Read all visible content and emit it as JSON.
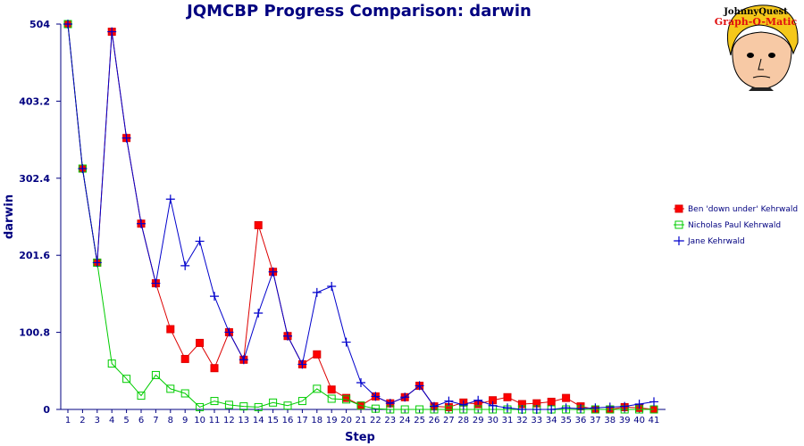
{
  "logo": {
    "line1": "JohnnyQuest",
    "line2": "Graph-O-Matic"
  },
  "chart_data": {
    "type": "line",
    "title": "JQMCBP Progress Comparison: darwin",
    "xlabel": "Step",
    "ylabel": "darwin",
    "ylim": [
      0,
      504
    ],
    "yticks": [
      "0",
      "100.8",
      "201.6",
      "302.4",
      "403.2",
      "504"
    ],
    "yticks_values": [
      0,
      100.8,
      201.6,
      302.4,
      403.2,
      504
    ],
    "categories": [
      "1",
      "2",
      "3",
      "4",
      "5",
      "6",
      "7",
      "8",
      "9",
      "10",
      "11",
      "12",
      "13",
      "14",
      "15",
      "16",
      "17",
      "18",
      "19",
      "20",
      "21",
      "22",
      "23",
      "24",
      "25",
      "26",
      "27",
      "28",
      "29",
      "30",
      "31",
      "32",
      "33",
      "34",
      "35",
      "36",
      "37",
      "38",
      "39",
      "40",
      "41"
    ],
    "grid": false,
    "legend_position": "right",
    "series": [
      {
        "name": "Ben 'down under' Kehrwald",
        "color": "#dd0000",
        "fill": "#ff0000",
        "marker": "filled-square",
        "values": [
          504,
          315,
          192,
          494,
          355,
          243,
          165,
          105,
          66,
          87,
          54,
          101,
          65,
          241,
          180,
          96,
          59,
          72,
          26,
          15,
          5,
          17,
          8,
          16,
          31,
          4,
          3,
          9,
          7,
          12,
          16,
          7,
          8,
          10,
          15,
          4,
          0,
          0,
          3,
          2,
          0
        ]
      },
      {
        "name": "Nicholas Paul Kehrwald",
        "color": "#00cc00",
        "fill": "none",
        "marker": "open-square",
        "values": [
          504,
          315,
          192,
          60,
          40,
          18,
          45,
          27,
          21,
          3,
          11,
          6,
          4,
          3,
          9,
          5,
          11,
          27,
          14,
          13,
          5,
          1,
          0,
          0,
          0,
          0,
          0,
          0,
          0,
          0,
          0,
          0,
          0,
          0,
          0,
          0,
          0,
          0,
          0,
          0,
          0
        ]
      },
      {
        "name": "Jane Kehrwald",
        "color": "#0000cc",
        "fill": "none",
        "marker": "plus",
        "values": [
          504,
          315,
          192,
          494,
          355,
          243,
          165,
          275,
          188,
          220,
          148,
          101,
          65,
          126,
          180,
          96,
          59,
          153,
          161,
          88,
          35,
          17,
          8,
          16,
          31,
          4,
          11,
          6,
          12,
          5,
          2,
          0,
          0,
          0,
          2,
          1,
          2,
          3,
          4,
          7,
          10
        ]
      }
    ]
  }
}
